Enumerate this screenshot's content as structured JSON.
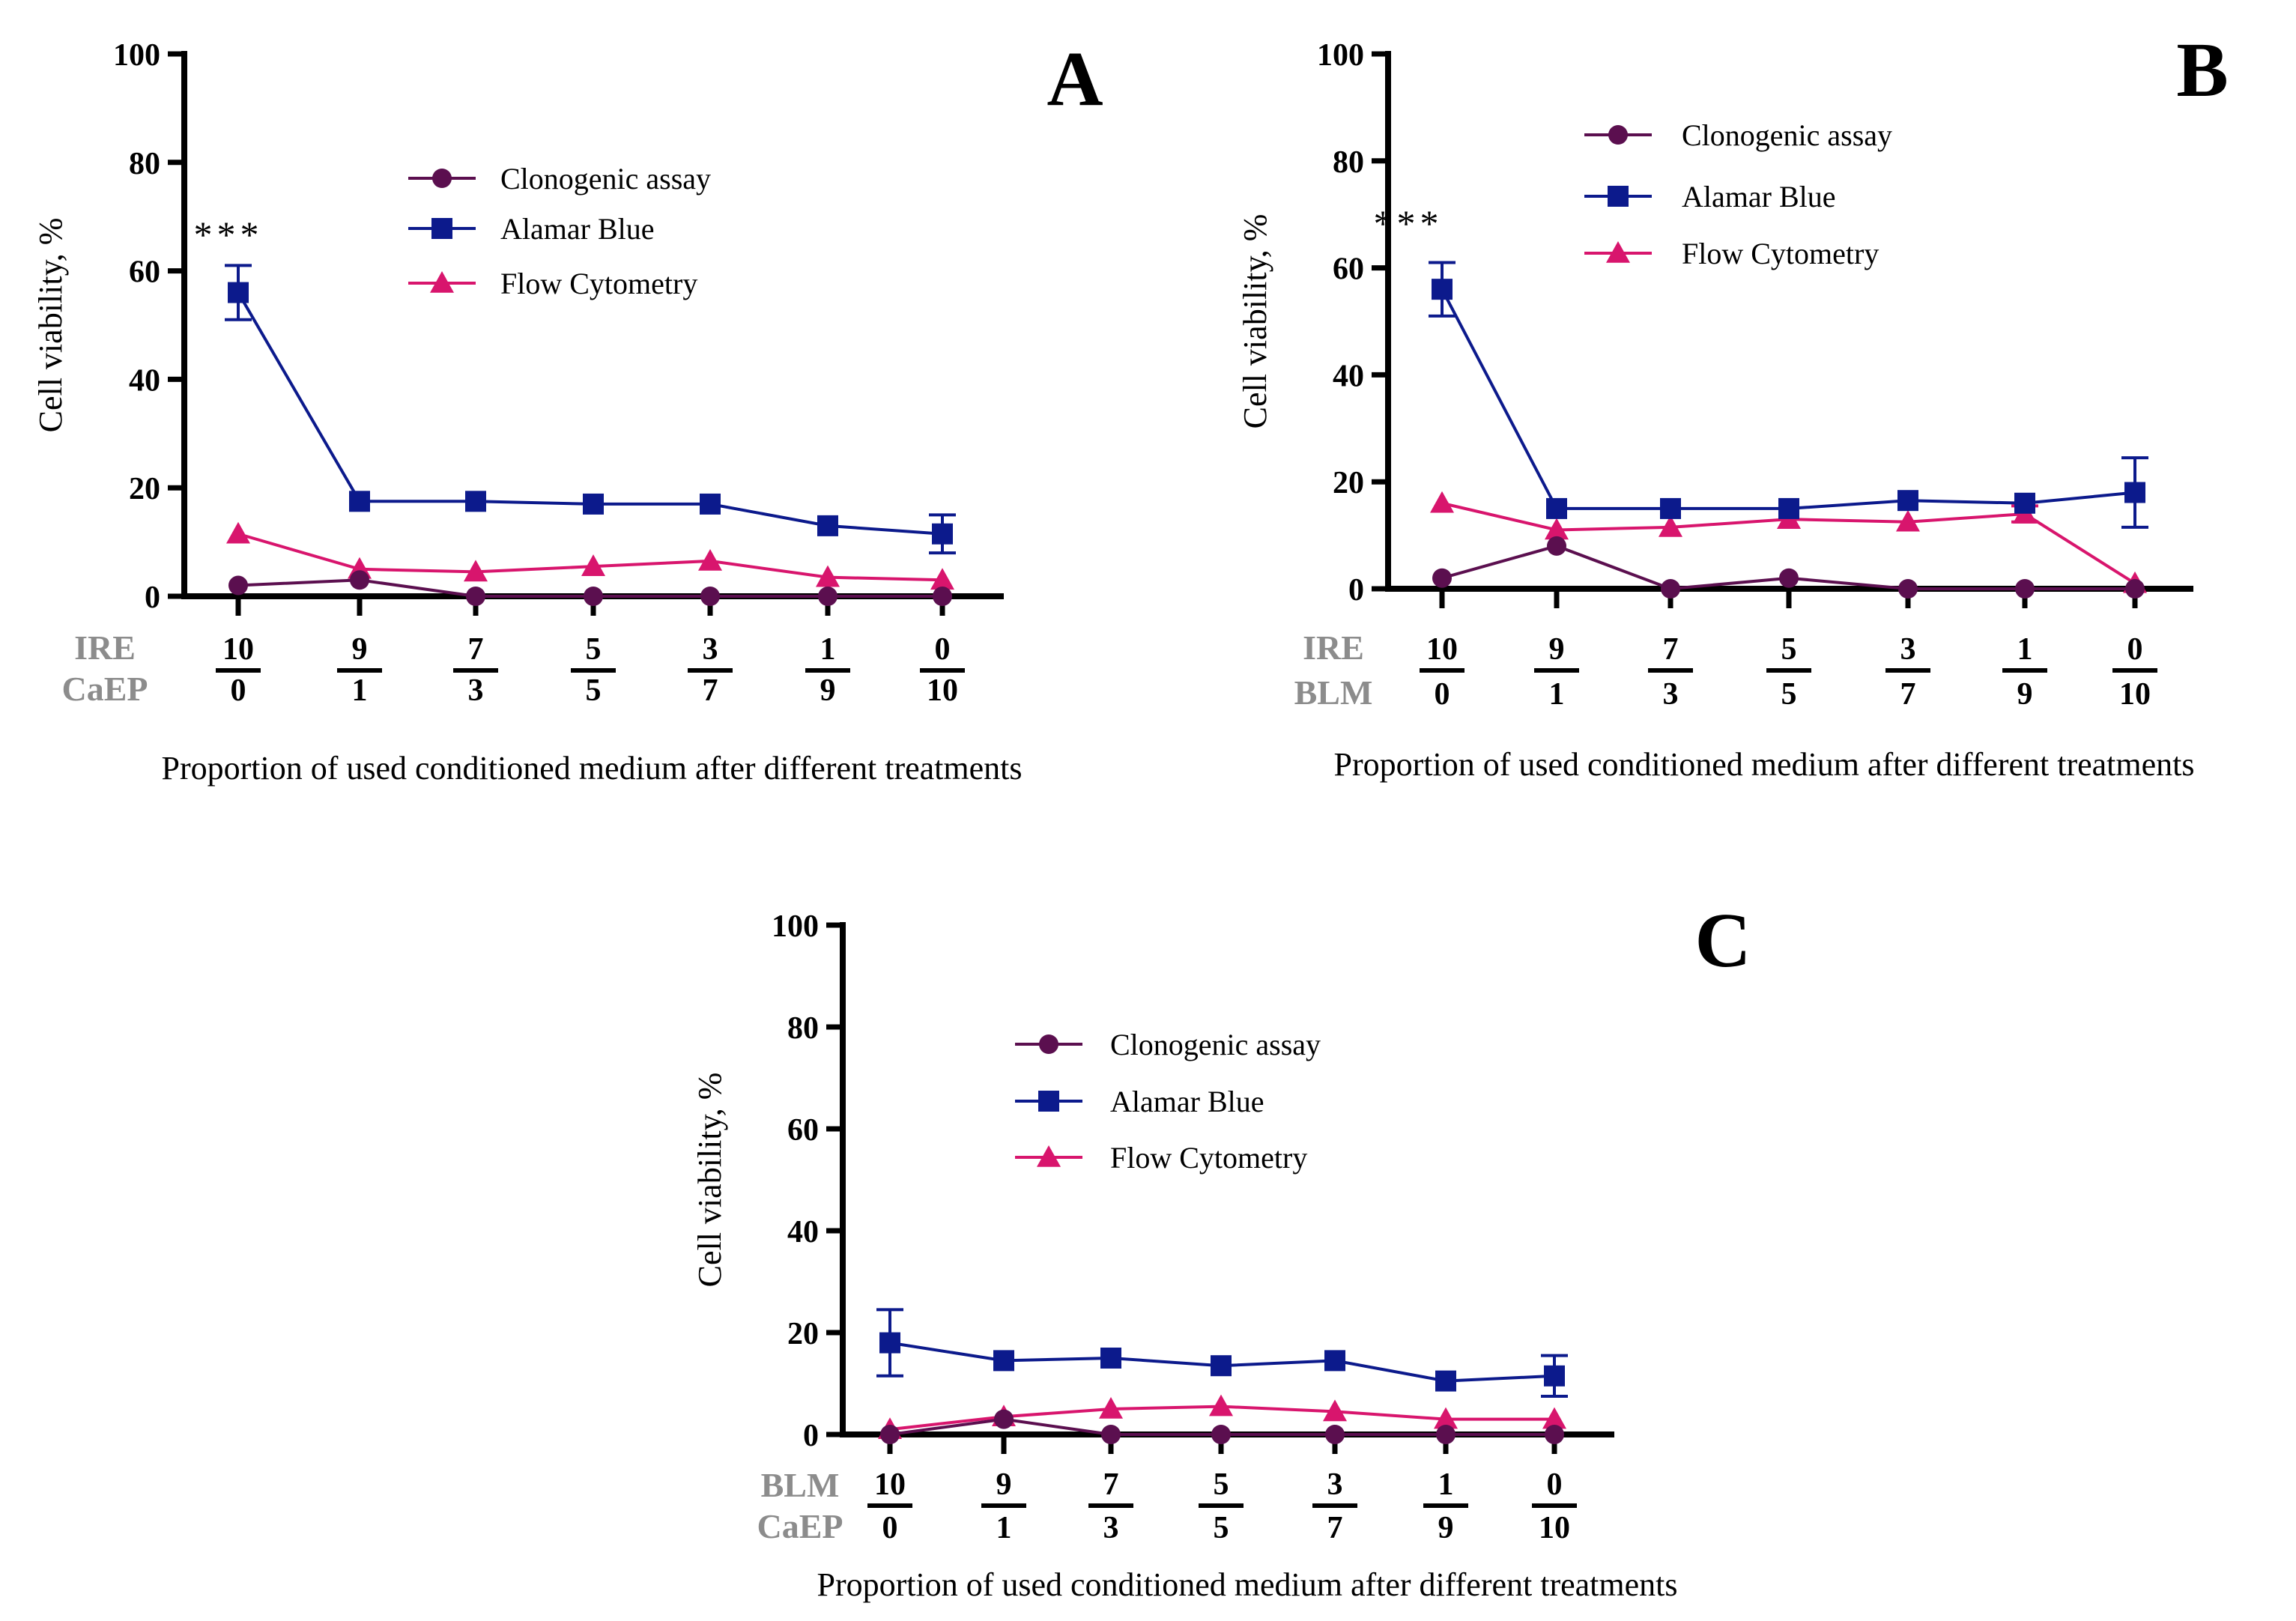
{
  "colors": {
    "Clonogenic assay": "#5b0f4f",
    "Alamar Blue": "#0c1a8c",
    "Flow Cytometry": "#d8156d",
    "axis": "#000000",
    "row_label": "#8c8c8c"
  },
  "chart_data": [
    {
      "panel": "A",
      "type": "line",
      "ylabel": "Cell viability, %",
      "xlabel": "Proportion of used conditioned medium after different treatments",
      "ylim": [
        0,
        100
      ],
      "yticks": [
        0,
        20,
        40,
        60,
        80,
        100
      ],
      "x_row_labels": [
        "IRE",
        "CaEP"
      ],
      "x_top": [
        "10",
        "9",
        "7",
        "5",
        "3",
        "1",
        "0"
      ],
      "x_bottom": [
        "0",
        "1",
        "3",
        "5",
        "7",
        "9",
        "10"
      ],
      "legend": [
        "Clonogenic assay",
        "Alamar Blue",
        "Flow Cytometry"
      ],
      "annotation": "***",
      "series": [
        {
          "name": "Clonogenic assay",
          "marker": "circle",
          "values": [
            2,
            3,
            0,
            0,
            0,
            0,
            0
          ],
          "errors": [
            0,
            0,
            0,
            0,
            0,
            0,
            0
          ]
        },
        {
          "name": "Alamar Blue",
          "marker": "square",
          "values": [
            56,
            17.5,
            17.5,
            17,
            17,
            13,
            11.5
          ],
          "errors": [
            5,
            0,
            0,
            0,
            0,
            0,
            3.5
          ]
        },
        {
          "name": "Flow Cytometry",
          "marker": "triangle",
          "values": [
            11.5,
            5,
            4.5,
            5.5,
            6.5,
            3.5,
            3
          ],
          "errors": [
            0,
            0,
            0,
            0,
            0,
            0,
            0
          ]
        }
      ]
    },
    {
      "panel": "B",
      "type": "line",
      "ylabel": "Cell viability, %",
      "xlabel": "Proportion of used conditioned medium after different treatments",
      "ylim": [
        0,
        100
      ],
      "yticks": [
        0,
        20,
        40,
        60,
        80,
        100
      ],
      "x_row_labels": [
        "IRE",
        "BLM"
      ],
      "x_top": [
        "10",
        "9",
        "7",
        "5",
        "3",
        "1",
        "0"
      ],
      "x_bottom": [
        "0",
        "1",
        "3",
        "5",
        "7",
        "9",
        "10"
      ],
      "legend": [
        "Clonogenic assay",
        "Alamar Blue",
        "Flow Cytometry"
      ],
      "annotation": "***",
      "series": [
        {
          "name": "Clonogenic assay",
          "marker": "circle",
          "values": [
            2,
            8,
            0,
            2,
            0,
            0,
            0
          ],
          "errors": [
            0,
            0,
            0,
            0,
            0,
            0,
            0
          ]
        },
        {
          "name": "Alamar Blue",
          "marker": "square",
          "values": [
            56,
            15,
            15,
            15,
            16.5,
            16,
            18
          ],
          "errors": [
            5,
            0,
            0,
            0,
            0,
            0,
            6.5
          ]
        },
        {
          "name": "Flow Cytometry",
          "marker": "triangle",
          "values": [
            16,
            11,
            11.5,
            13,
            12.5,
            14,
            1
          ],
          "errors": [
            0,
            0,
            0,
            0,
            0,
            1.5,
            0
          ]
        }
      ]
    },
    {
      "panel": "C",
      "type": "line",
      "ylabel": "Cell viability, %",
      "xlabel": "Proportion of used conditioned medium after different treatments",
      "ylim": [
        0,
        100
      ],
      "yticks": [
        0,
        20,
        40,
        60,
        80,
        100
      ],
      "x_row_labels": [
        "BLM",
        "CaEP"
      ],
      "x_top": [
        "10",
        "9",
        "7",
        "5",
        "3",
        "1",
        "0"
      ],
      "x_bottom": [
        "0",
        "1",
        "3",
        "5",
        "7",
        "9",
        "10"
      ],
      "legend": [
        "Clonogenic assay",
        "Alamar Blue",
        "Flow Cytometry"
      ],
      "annotation": "",
      "series": [
        {
          "name": "Clonogenic assay",
          "marker": "circle",
          "values": [
            0,
            3,
            0,
            0,
            0,
            0,
            0
          ],
          "errors": [
            0,
            0,
            0,
            0,
            0,
            0,
            0
          ]
        },
        {
          "name": "Alamar Blue",
          "marker": "square",
          "values": [
            18,
            14.5,
            15,
            13.5,
            14.5,
            10.5,
            11.5
          ],
          "errors": [
            6.5,
            0,
            0,
            0,
            0,
            0,
            4
          ]
        },
        {
          "name": "Flow Cytometry",
          "marker": "triangle",
          "values": [
            1,
            3.5,
            5,
            5.5,
            4.5,
            3,
            3
          ],
          "errors": [
            0,
            0,
            0,
            0,
            0,
            0,
            0
          ]
        }
      ]
    }
  ]
}
